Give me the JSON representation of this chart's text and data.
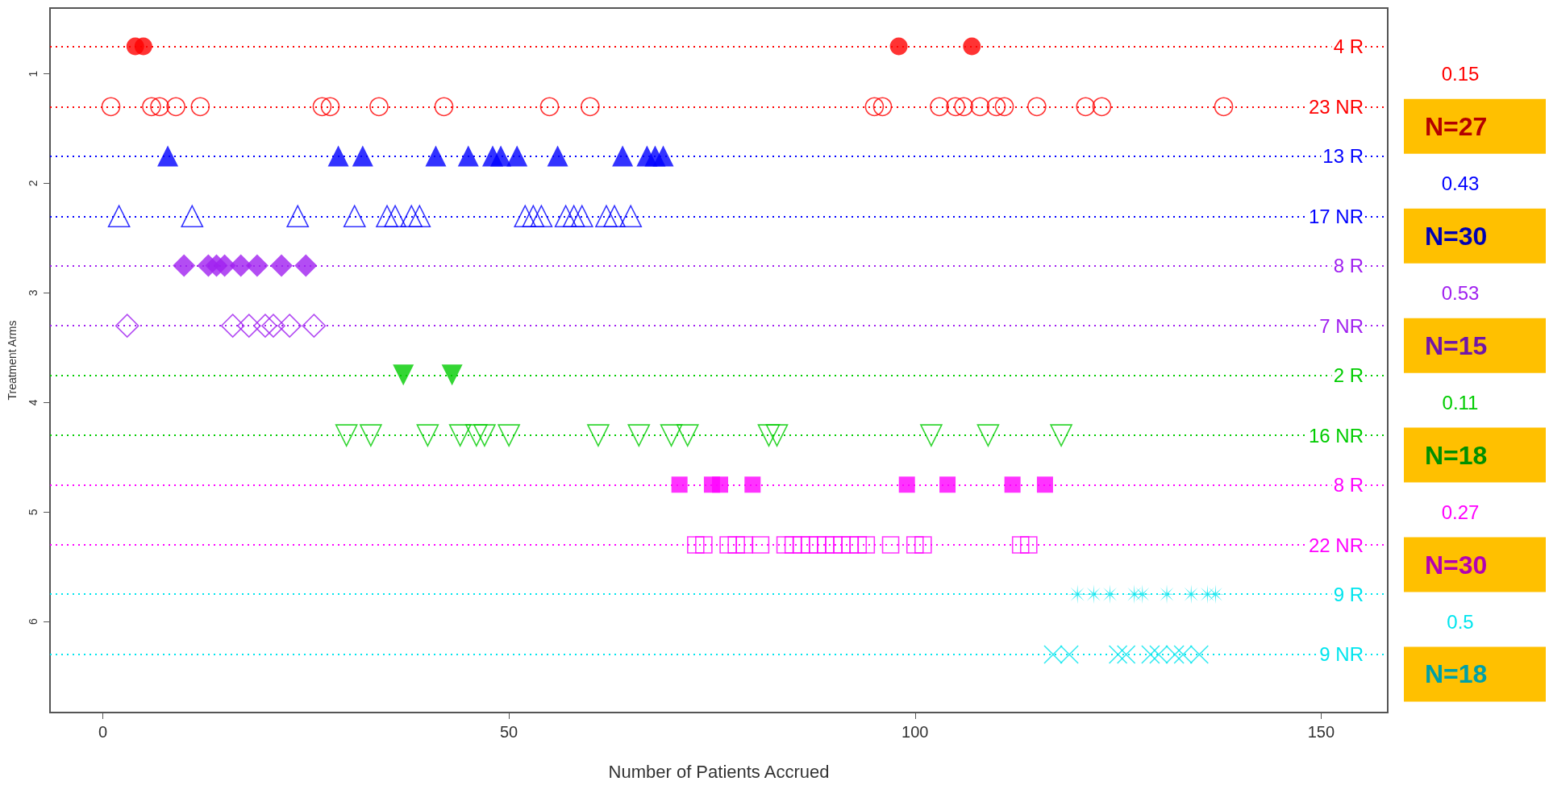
{
  "chart_data": {
    "type": "scatter",
    "xlabel": "Number of Patients Accrued",
    "ylabel": "Treatment Arms",
    "xlim": [
      -6.5,
      158.2
    ],
    "xticks": [
      0,
      50,
      100,
      150
    ],
    "ylim": [
      6.83,
      0.4
    ],
    "yticks": [
      1,
      2,
      3,
      4,
      5,
      6
    ],
    "grid": false,
    "legend": false,
    "series": [
      {
        "name": "4 R",
        "color": "#ff0000",
        "marker": "circle",
        "x": [
          4,
          5,
          98,
          107
        ],
        "values": [
          0.75,
          0.75,
          0.75,
          0.75
        ]
      },
      {
        "name": "23 NR",
        "color": "#ff0000",
        "marker": "circle",
        "x": [
          1,
          6,
          7,
          9,
          12,
          27,
          28,
          34,
          42,
          55,
          60,
          95,
          96,
          103,
          105,
          106,
          108,
          110,
          111,
          115,
          121,
          123,
          138
        ],
        "values": [
          1.3,
          1.3,
          1.3,
          1.3,
          1.3,
          1.3,
          1.3,
          1.3,
          1.3,
          1.3,
          1.3,
          1.3,
          1.3,
          1.3,
          1.3,
          1.3,
          1.3,
          1.3,
          1.3,
          1.3,
          1.3,
          1.3,
          1.3
        ]
      },
      {
        "name": "13 R",
        "color": "#0000ff",
        "marker": "triangle",
        "x": [
          8,
          29,
          32,
          41,
          45,
          48,
          49,
          51,
          56,
          64,
          67,
          68,
          69
        ],
        "values": [
          1.75,
          1.75,
          1.75,
          1.75,
          1.75,
          1.75,
          1.75,
          1.75,
          1.75,
          1.75,
          1.75,
          1.75,
          1.75
        ]
      },
      {
        "name": "17 NR",
        "color": "#0000ff",
        "marker": "triangle",
        "x": [
          2,
          11,
          24,
          31,
          35,
          36,
          38,
          39,
          52,
          53,
          54,
          57,
          58,
          59,
          62,
          63,
          65
        ],
        "values": [
          2.3,
          2.3,
          2.3,
          2.3,
          2.3,
          2.3,
          2.3,
          2.3,
          2.3,
          2.3,
          2.3,
          2.3,
          2.3,
          2.3,
          2.3,
          2.3,
          2.3
        ]
      },
      {
        "name": "8 R",
        "color": "#a020f0",
        "marker": "diamond",
        "x": [
          10,
          13,
          14,
          15,
          17,
          19,
          22,
          25
        ],
        "values": [
          2.75,
          2.75,
          2.75,
          2.75,
          2.75,
          2.75,
          2.75,
          2.75
        ]
      },
      {
        "name": "7 NR",
        "color": "#a020f0",
        "marker": "diamond",
        "x": [
          3,
          16,
          18,
          20,
          21,
          23,
          26
        ],
        "values": [
          3.3,
          3.3,
          3.3,
          3.3,
          3.3,
          3.3,
          3.3
        ]
      },
      {
        "name": "2 R",
        "color": "#00cc00",
        "marker": "triangle-down",
        "x": [
          37,
          43
        ],
        "values": [
          3.75,
          3.75
        ]
      },
      {
        "name": "16 NR",
        "color": "#00cc00",
        "marker": "triangle-down",
        "x": [
          30,
          33,
          40,
          44,
          46,
          47,
          50,
          61,
          66,
          70,
          72,
          82,
          83,
          102,
          109,
          118
        ],
        "values": [
          4.3,
          4.3,
          4.3,
          4.3,
          4.3,
          4.3,
          4.3,
          4.3,
          4.3,
          4.3,
          4.3,
          4.3,
          4.3,
          4.3,
          4.3,
          4.3
        ]
      },
      {
        "name": "8 R",
        "color": "#ff00ff",
        "marker": "square",
        "x": [
          71,
          75,
          76,
          80,
          99,
          104,
          112,
          116
        ],
        "values": [
          4.75,
          4.75,
          4.75,
          4.75,
          4.75,
          4.75,
          4.75,
          4.75
        ]
      },
      {
        "name": "22 NR",
        "color": "#ff00ff",
        "marker": "square",
        "x": [
          73,
          74,
          77,
          78,
          79,
          81,
          84,
          85,
          86,
          87,
          88,
          89,
          90,
          91,
          92,
          93,
          94,
          97,
          100,
          101,
          113,
          114
        ],
        "values": [
          5.3,
          5.3,
          5.3,
          5.3,
          5.3,
          5.3,
          5.3,
          5.3,
          5.3,
          5.3,
          5.3,
          5.3,
          5.3,
          5.3,
          5.3,
          5.3,
          5.3,
          5.3,
          5.3,
          5.3,
          5.3,
          5.3
        ]
      },
      {
        "name": "9 R",
        "color": "#00e5ee",
        "marker": "cross",
        "x": [
          120,
          122,
          124,
          127,
          128,
          131,
          134,
          136,
          137
        ],
        "values": [
          5.75,
          5.75,
          5.75,
          5.75,
          5.75,
          5.75,
          5.75,
          5.75,
          5.75
        ]
      },
      {
        "name": "9 NR",
        "color": "#00e5ee",
        "marker": "cross",
        "x": [
          117,
          119,
          125,
          126,
          129,
          130,
          132,
          133,
          135
        ],
        "values": [
          6.3,
          6.3,
          6.3,
          6.3,
          6.3,
          6.3,
          6.3,
          6.3,
          6.3
        ]
      }
    ],
    "ref_lines": [
      {
        "axis": "y",
        "value": 0.75,
        "color": "#ff0000",
        "line_style": "dotted"
      },
      {
        "axis": "y",
        "value": 1.3,
        "color": "#ff0000",
        "line_style": "dotted"
      },
      {
        "axis": "y",
        "value": 1.75,
        "color": "#0000ff",
        "line_style": "dotted"
      },
      {
        "axis": "y",
        "value": 2.3,
        "color": "#0000ff",
        "line_style": "dotted"
      },
      {
        "axis": "y",
        "value": 2.75,
        "color": "#a020f0",
        "line_style": "dotted"
      },
      {
        "axis": "y",
        "value": 3.3,
        "color": "#a020f0",
        "line_style": "dotted"
      },
      {
        "axis": "y",
        "value": 3.75,
        "color": "#00cc00",
        "line_style": "dotted"
      },
      {
        "axis": "y",
        "value": 4.3,
        "color": "#00cc00",
        "line_style": "dotted"
      },
      {
        "axis": "y",
        "value": 4.75,
        "color": "#ff00ff",
        "line_style": "dotted"
      },
      {
        "axis": "y",
        "value": 5.3,
        "color": "#ff00ff",
        "line_style": "dotted"
      },
      {
        "axis": "y",
        "value": 5.75,
        "color": "#00e5ee",
        "line_style": "dotted"
      },
      {
        "axis": "y",
        "value": 6.3,
        "color": "#00e5ee",
        "line_style": "dotted"
      }
    ],
    "annotations": [
      "0.15",
      "N=27",
      "0.43",
      "N=30",
      "0.53",
      "N=15",
      "0.11",
      "N=18",
      "0.27",
      "N=30",
      "0.5",
      "N=18"
    ]
  }
}
